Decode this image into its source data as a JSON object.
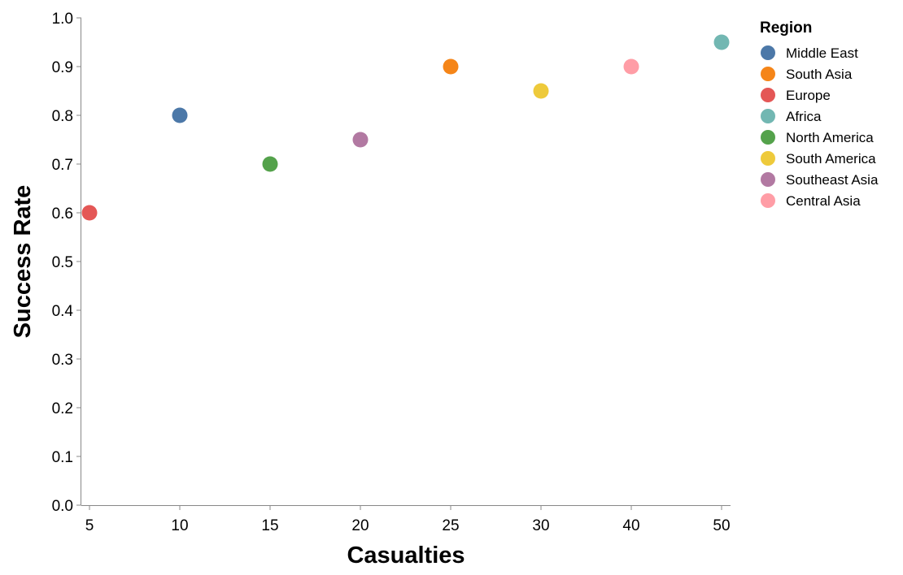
{
  "chart_data": {
    "type": "scatter",
    "xlabel": "Casualties",
    "ylabel": "Success Rate",
    "x_ticks": [
      "5",
      "10",
      "15",
      "20",
      "25",
      "30",
      "40",
      "50"
    ],
    "y_ticks": [
      "0.0",
      "0.1",
      "0.2",
      "0.3",
      "0.4",
      "0.5",
      "0.6",
      "0.7",
      "0.8",
      "0.9",
      "1.0"
    ],
    "ylim": [
      0,
      1
    ],
    "grid": false,
    "legend": {
      "title": "Region",
      "placement": "right",
      "entries": [
        {
          "label": "Middle East",
          "color": "#4c78a8"
        },
        {
          "label": "South Asia",
          "color": "#f58518"
        },
        {
          "label": "Europe",
          "color": "#e45756"
        },
        {
          "label": "Africa",
          "color": "#72b7b2"
        },
        {
          "label": "North America",
          "color": "#54a24b"
        },
        {
          "label": "South America",
          "color": "#eeca3b"
        },
        {
          "label": "Southeast Asia",
          "color": "#b279a2"
        },
        {
          "label": "Central Asia",
          "color": "#ff9da6"
        }
      ]
    },
    "points": [
      {
        "region": "Middle East",
        "x": 10,
        "y": 0.8
      },
      {
        "region": "South Asia",
        "x": 25,
        "y": 0.9
      },
      {
        "region": "Europe",
        "x": 5,
        "y": 0.6
      },
      {
        "region": "Africa",
        "x": 50,
        "y": 0.95
      },
      {
        "region": "North America",
        "x": 15,
        "y": 0.7
      },
      {
        "region": "South America",
        "x": 30,
        "y": 0.85
      },
      {
        "region": "Southeast Asia",
        "x": 20,
        "y": 0.75
      },
      {
        "region": "Central Asia",
        "x": 40,
        "y": 0.9
      }
    ]
  }
}
